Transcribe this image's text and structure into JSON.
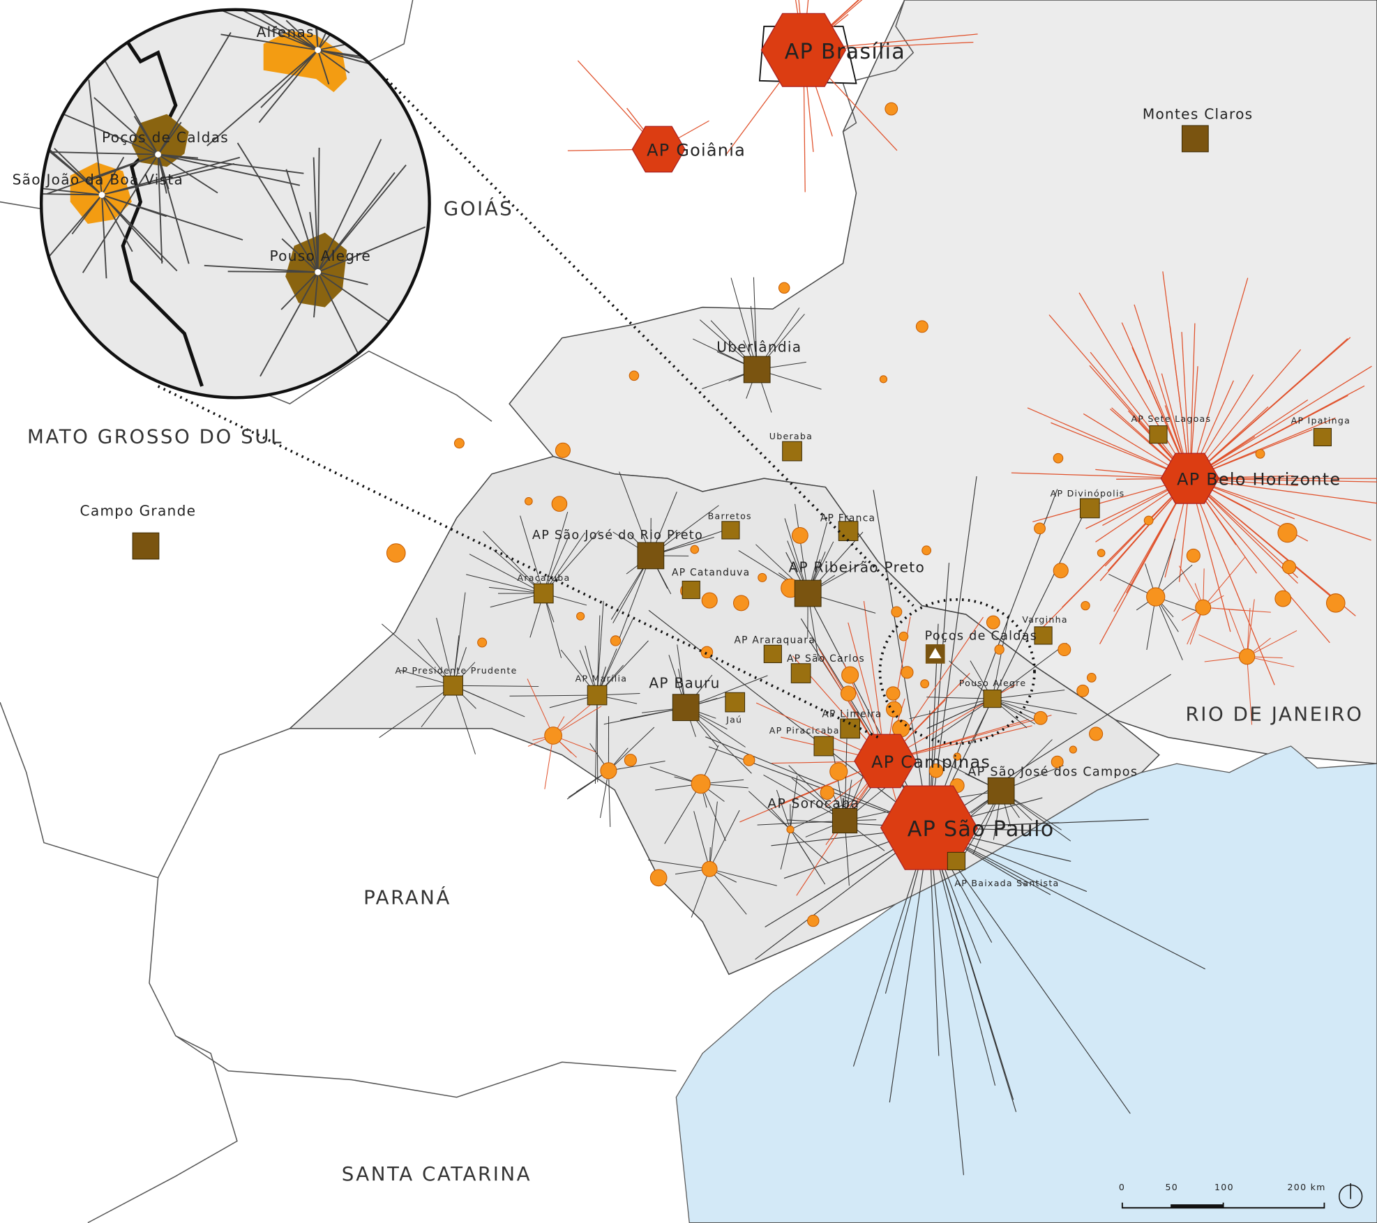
{
  "states": [
    "GOIÁS",
    "MATO GROSSO DO SUL",
    "PARANÁ",
    "SANTA CATARINA",
    "RIO DE JANEIRO"
  ],
  "hubs": [
    "AP Brasília",
    "AP Goiânia",
    "AP Belo Horizonte",
    "AP Campinas",
    "AP São Paulo"
  ],
  "cities": [
    "Montes Claros",
    "Uberlândia",
    "Campo Grande",
    "AP São José do Rio Preto",
    "AP Ribeirão Preto",
    "AP Bauru",
    "AP São José dos Campos",
    "AP Sorocaba",
    "Uberaba",
    "Barretos",
    "AP Franca",
    "AP Catanduva",
    "Araçatuba",
    "AP Araraquara",
    "AP São Carlos",
    "AP Presidente Prudente",
    "AP Marília",
    "Jaú",
    "AP Limeira",
    "AP Piracicaba",
    "AP Baixada Santista",
    "AP Sete Lagoas",
    "AP Ipatinga",
    "AP Divinópolis",
    "Varginha",
    "Pouso Alegre",
    "Poços de Caldas"
  ],
  "inset": {
    "cities": [
      "Alfenas",
      "Poços de Caldas",
      "São João da Boa Vista",
      "Pouso Alegre"
    ]
  },
  "scale_bar": {
    "labels": [
      "0",
      "50",
      "100",
      "200 km"
    ]
  }
}
